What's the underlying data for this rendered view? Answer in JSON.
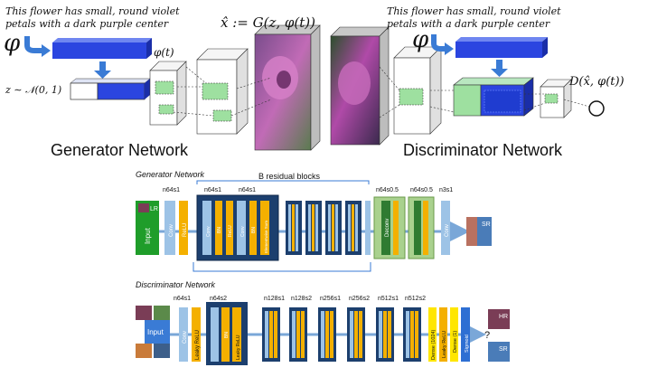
{
  "top": {
    "gen_caption_line1": "This flower has small, round violet",
    "gen_caption_line2": "petals with a dark purple center",
    "disc_caption_line1": "This flower has small, round violet",
    "disc_caption_line2": "petals with a dark purple center",
    "phi_symbol": "φ",
    "phi_of_t": "φ(t)",
    "z_noise": "z ∼ 𝒩(0, 1)",
    "x_hat_eq": "x̂ := G(z, φ(t))",
    "d_output": "D(x̂, φ(t))",
    "generator_title": "Generator Network",
    "discriminator_title": "Discriminator Network"
  },
  "srgan_gen": {
    "heading": "Generator Network",
    "residual_label": "B residual blocks",
    "top_labels": [
      "n64s1",
      "n64s1",
      "n64s1",
      "n64s0.5",
      "n64s0.5",
      "n3s1"
    ],
    "block_labels": {
      "input": "Input",
      "lr": "LR",
      "conv": "Conv",
      "relu": "ReLU",
      "bn": "BN",
      "elementwise_sum": "Elementwise Sum",
      "deconv": "Deconv",
      "sr": "SR"
    }
  },
  "srgan_disc": {
    "heading": "Discriminator Network",
    "top_labels": [
      "n64s1",
      "n64s2",
      "n128s1",
      "n128s2",
      "n256s1",
      "n256s2",
      "n512s1",
      "n512s2"
    ],
    "block_labels": {
      "input": "Input",
      "conv": "Conv",
      "leaky_relu": "Leaky ReLU",
      "bn": "BN",
      "dense_1024": "Dense (1024)",
      "dense_1": "Dense (1)",
      "sigmoid": "Sigmoid",
      "hr": "HR",
      "sr": "SR",
      "question": "?"
    }
  },
  "colors": {
    "blue_text_block": "#2b45e0",
    "green_feature": "#9ee0a0",
    "navy_block": "#1c3f6e",
    "gen_input": "#1f9d2a",
    "conv_blue": "#9dc3e6",
    "relu_orange": "#f4b000",
    "deconv_green": "#2f7b31",
    "dense_yellow": "#ffe600",
    "sigmoid_blue": "#2e6fd3"
  }
}
